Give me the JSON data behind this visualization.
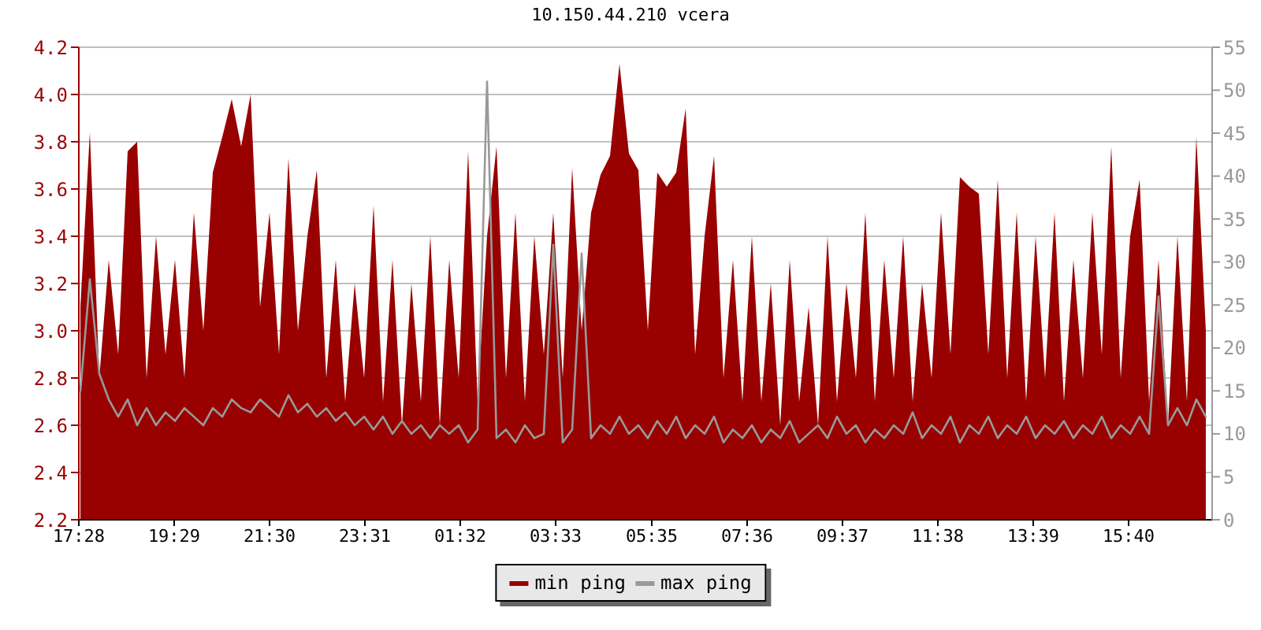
{
  "chart_data": {
    "type": "area",
    "title": "10.150.44.210 vcera",
    "x": [
      "--01-01T17:30",
      "--01-01T17:42",
      "--01-01T17:54",
      "--01-01T18:06",
      "--01-01T18:18",
      "--01-01T18:30",
      "--01-01T18:42",
      "--01-01T18:54",
      "--01-01T19:06",
      "--01-01T19:18",
      "--01-01T19:30",
      "--01-01T19:42",
      "--01-01T19:54",
      "--01-01T20:06",
      "--01-01T20:18",
      "--01-01T20:30",
      "--01-01T20:42",
      "--01-01T20:54",
      "--01-01T21:06",
      "--01-01T21:18",
      "--01-01T21:30",
      "--01-01T21:42",
      "--01-01T21:54",
      "--01-01T22:06",
      "--01-01T22:18",
      "--01-01T22:30",
      "--01-01T22:42",
      "--01-01T22:54",
      "--01-01T23:06",
      "--01-01T23:18",
      "--01-01T23:30",
      "--01-01T23:42",
      "--01-01T23:54",
      "--01-02T00:06",
      "--01-02T00:18",
      "--01-02T00:30",
      "--01-02T00:42",
      "--01-02T00:54",
      "--01-02T01:06",
      "--01-02T01:18",
      "--01-02T01:30",
      "--01-02T01:42",
      "--01-02T01:54",
      "--01-02T02:06",
      "--01-02T02:18",
      "--01-02T02:30",
      "--01-02T02:42",
      "--01-02T02:54",
      "--01-02T03:06",
      "--01-02T03:18",
      "--01-02T03:30",
      "--01-02T03:42",
      "--01-02T03:54",
      "--01-02T04:06",
      "--01-02T04:18",
      "--01-02T04:30",
      "--01-02T04:42",
      "--01-02T04:54",
      "--01-02T05:06",
      "--01-02T05:18",
      "--01-02T05:30",
      "--01-02T05:42",
      "--01-02T05:54",
      "--01-02T06:06",
      "--01-02T06:18",
      "--01-02T06:30",
      "--01-02T06:42",
      "--01-02T06:54",
      "--01-02T07:06",
      "--01-02T07:18",
      "--01-02T07:30",
      "--01-02T07:42",
      "--01-02T07:54",
      "--01-02T08:06",
      "--01-02T08:18",
      "--01-02T08:30",
      "--01-02T08:42",
      "--01-02T08:54",
      "--01-02T09:06",
      "--01-02T09:18",
      "--01-02T09:30",
      "--01-02T09:42",
      "--01-02T09:54",
      "--01-02T10:06",
      "--01-02T10:18",
      "--01-02T10:30",
      "--01-02T10:42",
      "--01-02T10:54",
      "--01-02T11:06",
      "--01-02T11:18",
      "--01-02T11:30",
      "--01-02T11:42",
      "--01-02T11:54",
      "--01-02T12:06",
      "--01-02T12:18",
      "--01-02T12:30",
      "--01-02T12:42",
      "--01-02T12:54",
      "--01-02T13:06",
      "--01-02T13:18",
      "--01-02T13:30",
      "--01-02T13:42",
      "--01-02T13:54",
      "--01-02T14:06",
      "--01-02T14:18",
      "--01-02T14:30",
      "--01-02T14:42",
      "--01-02T14:54",
      "--01-02T15:06",
      "--01-02T15:18",
      "--01-02T15:30",
      "--01-02T15:42",
      "--01-02T15:54",
      "--01-02T16:06",
      "--01-02T16:18",
      "--01-02T16:30",
      "--01-02T16:42",
      "--01-02T16:54",
      "--01-02T17:06",
      "--01-02T17:18"
    ],
    "series": [
      {
        "name": "min ping",
        "color": "#990000",
        "values": [
          3.1,
          3.84,
          2.8,
          3.3,
          2.9,
          3.76,
          3.8,
          2.8,
          3.4,
          2.9,
          3.3,
          2.8,
          3.5,
          3.0,
          3.67,
          3.82,
          3.98,
          3.78,
          4.0,
          3.1,
          3.5,
          2.9,
          3.73,
          3.0,
          3.4,
          3.68,
          2.8,
          3.3,
          2.7,
          3.2,
          2.8,
          3.53,
          2.7,
          3.3,
          2.6,
          3.2,
          2.7,
          3.4,
          2.6,
          3.3,
          2.8,
          3.76,
          2.7,
          3.4,
          3.78,
          2.8,
          3.5,
          2.7,
          3.4,
          2.9,
          3.5,
          2.8,
          3.69,
          3.0,
          3.5,
          3.66,
          3.74,
          4.13,
          3.75,
          3.68,
          3.0,
          3.67,
          3.61,
          3.67,
          3.94,
          2.9,
          3.4,
          3.74,
          2.8,
          3.3,
          2.7,
          3.4,
          2.7,
          3.2,
          2.6,
          3.3,
          2.7,
          3.1,
          2.6,
          3.4,
          2.7,
          3.2,
          2.8,
          3.5,
          2.7,
          3.3,
          2.8,
          3.4,
          2.7,
          3.2,
          2.8,
          3.5,
          2.9,
          3.65,
          3.61,
          3.58,
          2.9,
          3.64,
          2.8,
          3.5,
          2.7,
          3.4,
          2.8,
          3.5,
          2.7,
          3.3,
          2.8,
          3.5,
          2.9,
          3.78,
          2.8,
          3.4,
          3.64,
          2.7,
          3.3,
          2.6,
          3.4,
          2.7,
          3.82,
          3.0
        ]
      },
      {
        "name": "max ping",
        "color": "#999999",
        "type": "line",
        "axis": "y2",
        "values": [
          15,
          28,
          17,
          14,
          12,
          14,
          11,
          13,
          11,
          12.5,
          11.5,
          13,
          12,
          11,
          13,
          12,
          14,
          13,
          12.5,
          14,
          13,
          12,
          14.5,
          12.5,
          13.5,
          12,
          13,
          11.5,
          12.5,
          11,
          12,
          10.5,
          12,
          10,
          11.5,
          10,
          11,
          9.5,
          11,
          10,
          11,
          9,
          10.5,
          51,
          9.5,
          10.5,
          9,
          11,
          9.5,
          10,
          32,
          9,
          10.5,
          31,
          9.5,
          11,
          10,
          12,
          10,
          11,
          9.5,
          11.5,
          10,
          12,
          9.5,
          11,
          10,
          12,
          9,
          10.5,
          9.5,
          11,
          9,
          10.5,
          9.5,
          11.5,
          9,
          10,
          11,
          9.5,
          12,
          10,
          11,
          9,
          10.5,
          9.5,
          11,
          10,
          12.5,
          9.5,
          11,
          10,
          12,
          9,
          11,
          10,
          12,
          9.5,
          11,
          10,
          12,
          9.5,
          11,
          10,
          11.5,
          9.5,
          11,
          10,
          12,
          9.5,
          11,
          10,
          12,
          10,
          26,
          11,
          13,
          11,
          14,
          12
        ]
      }
    ],
    "xlim": [
      "--01-01T17:28",
      "--01-02T17:26"
    ],
    "xticks": [
      {
        "value": "--01-01T17:28",
        "label": "17:28"
      },
      {
        "value": "--01-01T19:29",
        "label": "19:29"
      },
      {
        "value": "--01-01T21:30",
        "label": "21:30"
      },
      {
        "value": "--01-01T23:31",
        "label": "23:31"
      },
      {
        "value": "--01-02T01:32",
        "label": "01:32"
      },
      {
        "value": "--01-02T03:33",
        "label": "03:33"
      },
      {
        "value": "--01-02T05:35",
        "label": "05:35"
      },
      {
        "value": "--01-02T07:36",
        "label": "07:36"
      },
      {
        "value": "--01-02T09:37",
        "label": "09:37"
      },
      {
        "value": "--01-02T11:38",
        "label": "11:38"
      },
      {
        "value": "--01-02T13:39",
        "label": "13:39"
      },
      {
        "value": "--01-02T15:40",
        "label": "15:40"
      }
    ],
    "ylim": [
      2.2,
      4.2
    ],
    "yticks": [
      2.2,
      2.4,
      2.6,
      2.8,
      {
        "value": 3,
        "label": "3.0"
      },
      3.2,
      3.4,
      3.6,
      3.8,
      {
        "value": 4,
        "label": "4.0"
      },
      4.2
    ],
    "y2lim": [
      0,
      55
    ],
    "y2ticks": [
      0,
      5,
      10,
      15,
      20,
      25,
      30,
      35,
      40,
      45,
      50,
      55
    ],
    "grid": "y",
    "legend": "bottom",
    "marker": "none"
  }
}
